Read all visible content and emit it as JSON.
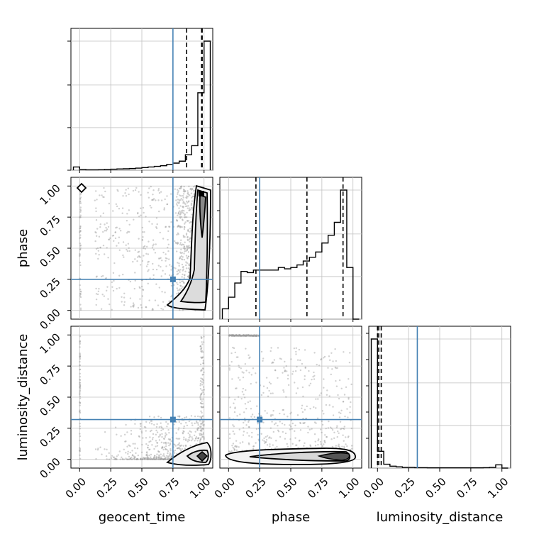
{
  "chart_data": {
    "type": "corner",
    "parameters": [
      "geocent_time",
      "phase",
      "luminosity_distance"
    ],
    "tick_values": [
      0.0,
      0.25,
      0.5,
      0.75,
      1.0
    ],
    "tick_labels": [
      "0.00",
      "0.25",
      "0.50",
      "0.75",
      "1.00"
    ],
    "axis_range": [
      -0.07,
      1.07
    ],
    "grid": true,
    "colors": {
      "truth": "#4682b4",
      "hist": "#000000",
      "quantile": "#000000",
      "scatter": "#9a9a9a",
      "grid": "#c0c0c0"
    },
    "truths": {
      "geocent_time": 0.75,
      "phase": 0.25,
      "luminosity_distance": 0.32
    },
    "histograms": {
      "geocent_time": {
        "bin_edges": [
          -0.05,
          0.0,
          0.05,
          0.1,
          0.15,
          0.2,
          0.25,
          0.3,
          0.35,
          0.4,
          0.45,
          0.5,
          0.55,
          0.6,
          0.65,
          0.7,
          0.75,
          0.8,
          0.85,
          0.9,
          0.95,
          1.0,
          1.05
        ],
        "counts": [
          2.5,
          0.5,
          0.3,
          0.3,
          0.4,
          0.6,
          0.8,
          1,
          1.1,
          1.3,
          1.6,
          2,
          2.5,
          3,
          3.5,
          4.5,
          5.5,
          7,
          12,
          19,
          60,
          100
        ],
        "quantiles": [
          0.86,
          0.98,
          0.985
        ]
      },
      "phase": {
        "bin_edges": [
          -0.05,
          0.0,
          0.05,
          0.1,
          0.15,
          0.2,
          0.25,
          0.3,
          0.35,
          0.4,
          0.45,
          0.5,
          0.55,
          0.6,
          0.65,
          0.7,
          0.75,
          0.8,
          0.85,
          0.9,
          0.95,
          1.0,
          1.05
        ],
        "counts": [
          8,
          17,
          28,
          37,
          36,
          38,
          38,
          38,
          38,
          40,
          39,
          40,
          42,
          45,
          48,
          52,
          59,
          65,
          75,
          100,
          40,
          0
        ],
        "quantiles": [
          0.22,
          0.63,
          0.92
        ]
      },
      "luminosity_distance": {
        "bin_edges": [
          -0.05,
          0.0,
          0.05,
          0.1,
          0.15,
          0.2,
          0.25,
          0.3,
          0.35,
          0.4,
          0.45,
          0.5,
          0.55,
          0.6,
          0.65,
          0.7,
          0.75,
          0.8,
          0.85,
          0.9,
          0.95,
          1.0,
          1.05
        ],
        "counts": [
          100,
          13,
          3,
          1.5,
          1,
          0.5,
          0.5,
          0.3,
          0.3,
          0.2,
          0.2,
          0.2,
          0.2,
          0.2,
          0.2,
          0.2,
          0.2,
          0.2,
          0.3,
          0.5,
          2.5,
          0
        ],
        "quantiles": [
          0.0,
          0.01,
          0.03
        ]
      }
    }
  }
}
